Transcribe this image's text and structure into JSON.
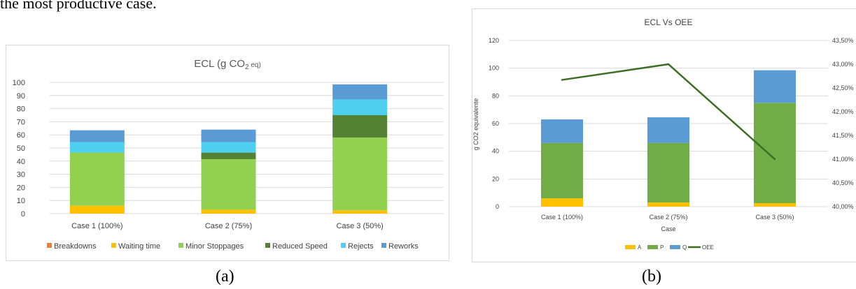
{
  "document": {
    "top_text": "the most productive case."
  },
  "captions": {
    "a": "(a)",
    "b": "(b)"
  },
  "colors": {
    "breakdowns": "#ED7D31",
    "waiting_time": "#FFC000",
    "minor_stoppages": "#92D050",
    "reduced_speed": "#548235",
    "rejects": "#4DD0F0",
    "reworks": "#5B9BD5",
    "A": "#FFC000",
    "P": "#70AD47",
    "Q": "#5B9BD5",
    "OEE": "#3B6E22"
  },
  "chart_data": [
    {
      "id": "a",
      "type": "bar",
      "stacked": true,
      "title_main": "ECL (g CO",
      "title_sub": "2",
      "title_tail": " eq)",
      "categories": [
        "Case 1 (100%)",
        "Case 2 (75%)",
        "Case 3 (50%)"
      ],
      "ylim": [
        0,
        100
      ],
      "yticks": [
        "0",
        "10",
        "20",
        "30",
        "40",
        "50",
        "60",
        "70",
        "80",
        "90",
        "100"
      ],
      "grid": true,
      "legend_position": "bottom",
      "series": [
        {
          "name": "Breakdowns",
          "key": "breakdowns",
          "values": [
            0,
            0,
            0
          ]
        },
        {
          "name": "Waiting time",
          "key": "waiting_time",
          "values": [
            6,
            3,
            2.5
          ]
        },
        {
          "name": "Minor Stoppages",
          "key": "minor_stoppages",
          "values": [
            40.5,
            38.5,
            55.5
          ]
        },
        {
          "name": "Reduced Speed",
          "key": "reduced_speed",
          "values": [
            0,
            5,
            17
          ]
        },
        {
          "name": "Rejects",
          "key": "rejects",
          "values": [
            8,
            8,
            12
          ]
        },
        {
          "name": "Reworks",
          "key": "reworks",
          "values": [
            9,
            9.5,
            11.5
          ]
        }
      ]
    },
    {
      "id": "b",
      "type": "bar+line",
      "stacked": true,
      "title": "ECL Vs OEE",
      "xlabel": "Case",
      "ylabel": "g CO2 equivalente",
      "categories": [
        "Case 1 (100%)",
        "Case 2 (75%)",
        "Case 3 (50%)"
      ],
      "ylim": [
        0,
        120
      ],
      "yticks": [
        "0",
        "20",
        "40",
        "60",
        "80",
        "100",
        "120"
      ],
      "y2lim": [
        40.0,
        43.5
      ],
      "y2ticks": [
        "40,00%",
        "40,50%",
        "41,00%",
        "41,50%",
        "42,00%",
        "42,50%",
        "43,00%",
        "43,50%"
      ],
      "grid": true,
      "legend_position": "bottom",
      "series": [
        {
          "name": "A",
          "key": "A",
          "values": [
            6,
            3,
            2.5
          ]
        },
        {
          "name": "P",
          "key": "P",
          "values": [
            40,
            43,
            72.5
          ]
        },
        {
          "name": "Q",
          "key": "Q",
          "values": [
            17,
            18.5,
            23.5
          ]
        }
      ],
      "line": {
        "name": "OEE",
        "key": "OEE",
        "values": [
          42.67,
          43.0,
          41.0
        ]
      }
    }
  ]
}
